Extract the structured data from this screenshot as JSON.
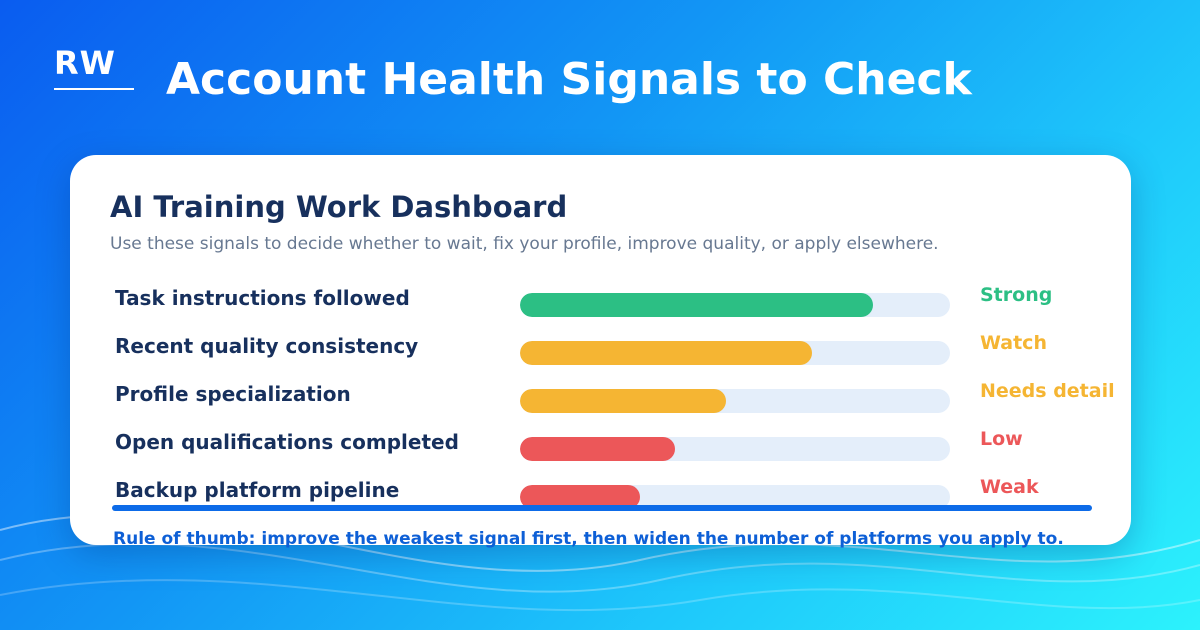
{
  "logo": {
    "text": "RW"
  },
  "header": {
    "title": "Account Health Signals to Check"
  },
  "card": {
    "title": "AI Training Work Dashboard",
    "subtitle": "Use these signals to decide whether to wait, fix your profile, improve quality, or apply elsewhere."
  },
  "signals": [
    {
      "label": "Task instructions followed",
      "level": 0.82,
      "status": "Strong",
      "color": "#2cbf84"
    },
    {
      "label": "Recent quality consistency",
      "level": 0.68,
      "status": "Watch",
      "color": "#f5b533"
    },
    {
      "label": "Profile specialization",
      "level": 0.48,
      "status": "Needs detail",
      "color": "#f5b533"
    },
    {
      "label": "Open qualifications completed",
      "level": 0.36,
      "status": "Low",
      "color": "#ec5759"
    },
    {
      "label": "Backup platform pipeline",
      "level": 0.28,
      "status": "Weak",
      "color": "#ec5759"
    }
  ],
  "footer": {
    "rule_text": "Rule of thumb: improve the weakest signal first, then widen the number of platforms you apply to."
  },
  "colors": {
    "accent": "#0d6be8",
    "heading": "#17305d",
    "track": "#e4eefa"
  }
}
